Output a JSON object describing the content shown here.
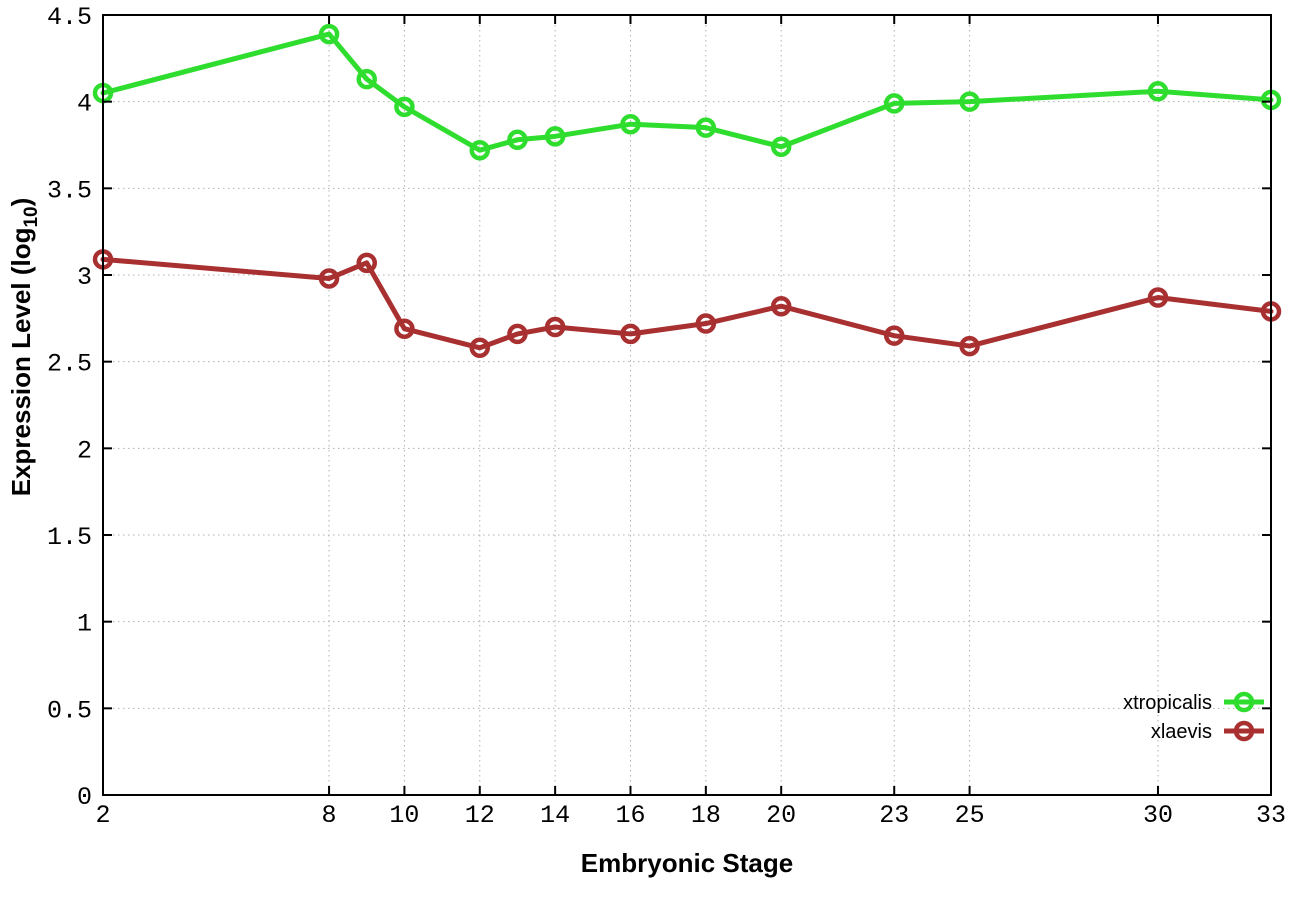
{
  "chart_data": {
    "type": "line",
    "title": "",
    "xlabel": "Embryonic Stage",
    "ylabel": "Expression Level (log10)",
    "ylabel_parts": {
      "main": "Expression Level (log",
      "sub": "10",
      "close": ")"
    },
    "xlim": [
      2,
      33
    ],
    "ylim": [
      0,
      4.5
    ],
    "x_ticks": [
      2,
      8,
      10,
      12,
      14,
      16,
      18,
      20,
      23,
      25,
      30,
      33
    ],
    "y_ticks": [
      0,
      0.5,
      1,
      1.5,
      2,
      2.5,
      3,
      3.5,
      4,
      4.5
    ],
    "grid": true,
    "legend_position": "bottom-right",
    "x": [
      2,
      8,
      9,
      10,
      12,
      13,
      14,
      16,
      18,
      20,
      23,
      25,
      30,
      33
    ],
    "series": [
      {
        "name": "xtropicalis",
        "color": "#2fdd2f",
        "values": [
          4.05,
          4.39,
          4.13,
          3.97,
          3.72,
          3.78,
          3.8,
          3.87,
          3.85,
          3.74,
          3.99,
          4.0,
          4.06,
          4.01
        ]
      },
      {
        "name": "xlaevis",
        "color": "#a93030",
        "values": [
          3.09,
          2.98,
          3.07,
          2.69,
          2.58,
          2.66,
          2.7,
          2.66,
          2.72,
          2.82,
          2.65,
          2.59,
          2.87,
          2.79
        ]
      }
    ],
    "style": {
      "grid_color": "#b0b0b0",
      "axis_color": "#000000",
      "background": "#ffffff",
      "line_width": 5,
      "marker_radius": 8,
      "marker_stroke": 4.5
    }
  }
}
